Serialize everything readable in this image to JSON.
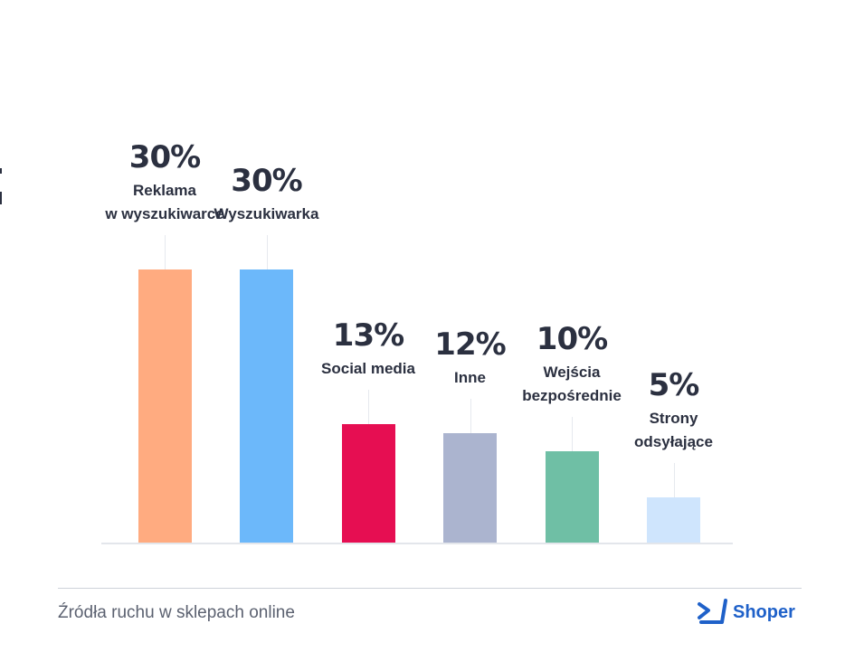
{
  "chart_data": {
    "type": "bar",
    "categories": [
      "Reklama\nw wyszukiwarce",
      "Wyszukiwarka",
      "Social media",
      "Inne",
      "Wejścia\nbezpośrednie",
      "Strony\nodsyłające"
    ],
    "values": [
      30,
      30,
      13,
      12,
      10,
      5
    ],
    "value_labels": [
      "30%",
      "30%",
      "13%",
      "12%",
      "10%",
      "5%"
    ],
    "colors": [
      "#ffab80",
      "#6cb8fa",
      "#e60e52",
      "#abb4cf",
      "#6fbfa5",
      "#cfe5fd"
    ],
    "grid": false,
    "legend": "none"
  },
  "caption": "Źródła ruchu w sklepach online",
  "brand": {
    "name": "Shoper",
    "logo_icon": "shoper-logo-icon",
    "color": "#1f61c9"
  }
}
